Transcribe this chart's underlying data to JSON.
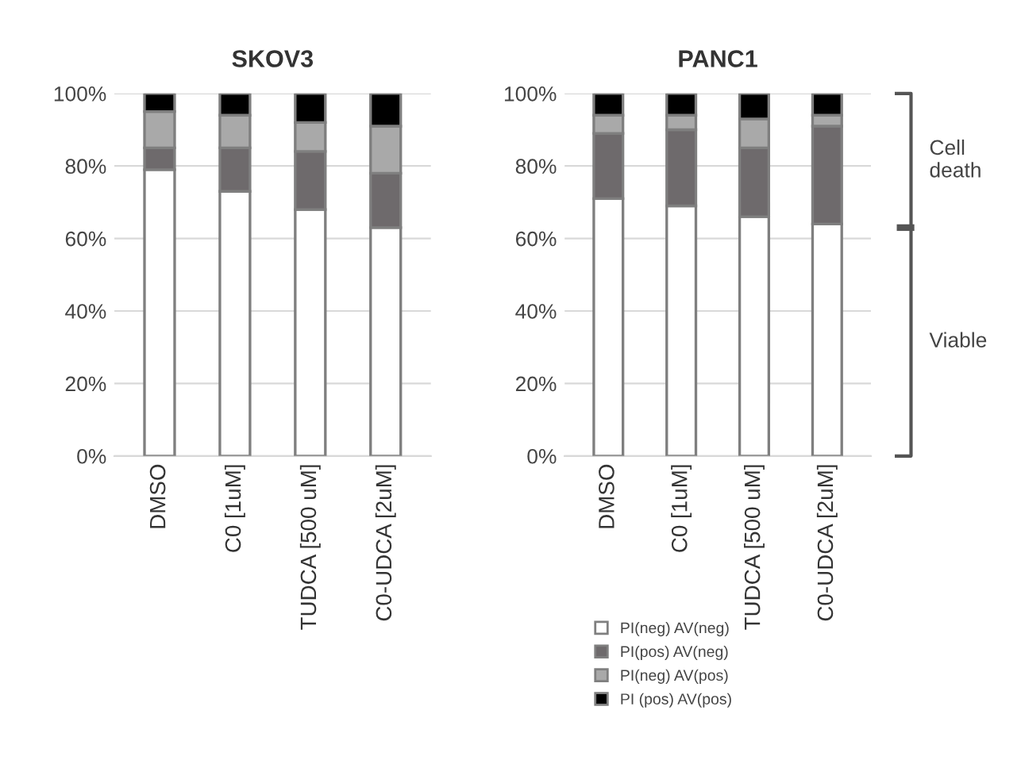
{
  "chart_data": [
    {
      "type": "bar",
      "stacked": true,
      "title": "SKOV3",
      "categories": [
        "DMSO",
        "C0 [1uM]",
        "TUDCA [500 uM]",
        "C0-UDCA [2uM]"
      ],
      "series": [
        {
          "color": "#ffffff",
          "values": [
            79,
            73,
            68,
            63
          ]
        },
        {
          "color": "#6e6a6c",
          "values": [
            6,
            12,
            16,
            15
          ]
        },
        {
          "color": "#a9a9a9",
          "values": [
            10,
            9,
            8,
            13
          ]
        },
        {
          "color": "#000000",
          "values": [
            5,
            6,
            8,
            9
          ]
        }
      ],
      "ylim": [
        0,
        100
      ],
      "yticks": [
        {
          "value": 0,
          "label": "0%"
        },
        {
          "value": 20,
          "label": "20%"
        },
        {
          "value": 40,
          "label": "40%"
        },
        {
          "value": 60,
          "label": "60%"
        },
        {
          "value": 80,
          "label": "80%"
        },
        {
          "value": 100,
          "label": "100%"
        }
      ],
      "grid": "y"
    },
    {
      "type": "bar",
      "stacked": true,
      "title": "PANC1",
      "categories": [
        "DMSO",
        "C0 [1uM]",
        "TUDCA [500 uM]",
        "C0-UDCA [2uM]"
      ],
      "series": [
        {
          "name": "PI(neg) AV(neg)",
          "color": "#ffffff",
          "values": [
            71,
            69,
            66,
            64
          ]
        },
        {
          "name": "PI(pos) AV(neg)",
          "color": "#6e6a6c",
          "values": [
            18,
            21,
            19,
            27
          ]
        },
        {
          "name": "PI(neg) AV(pos)",
          "color": "#a9a9a9",
          "values": [
            5,
            4,
            8,
            3
          ]
        },
        {
          "name": "PI (pos) AV(pos)",
          "color": "#000000",
          "values": [
            6,
            6,
            7,
            6
          ]
        }
      ],
      "ylim": [
        0,
        100
      ],
      "yticks": [
        {
          "value": 0,
          "label": "0%"
        },
        {
          "value": 20,
          "label": "20%"
        },
        {
          "value": 40,
          "label": "40%"
        },
        {
          "value": 60,
          "label": "60%"
        },
        {
          "value": 80,
          "label": "80%"
        },
        {
          "value": 100,
          "label": "100%"
        }
      ],
      "grid": "y",
      "annotations": [
        "Cell\ndeath",
        "Viable"
      ],
      "legend": "bottom"
    }
  ]
}
